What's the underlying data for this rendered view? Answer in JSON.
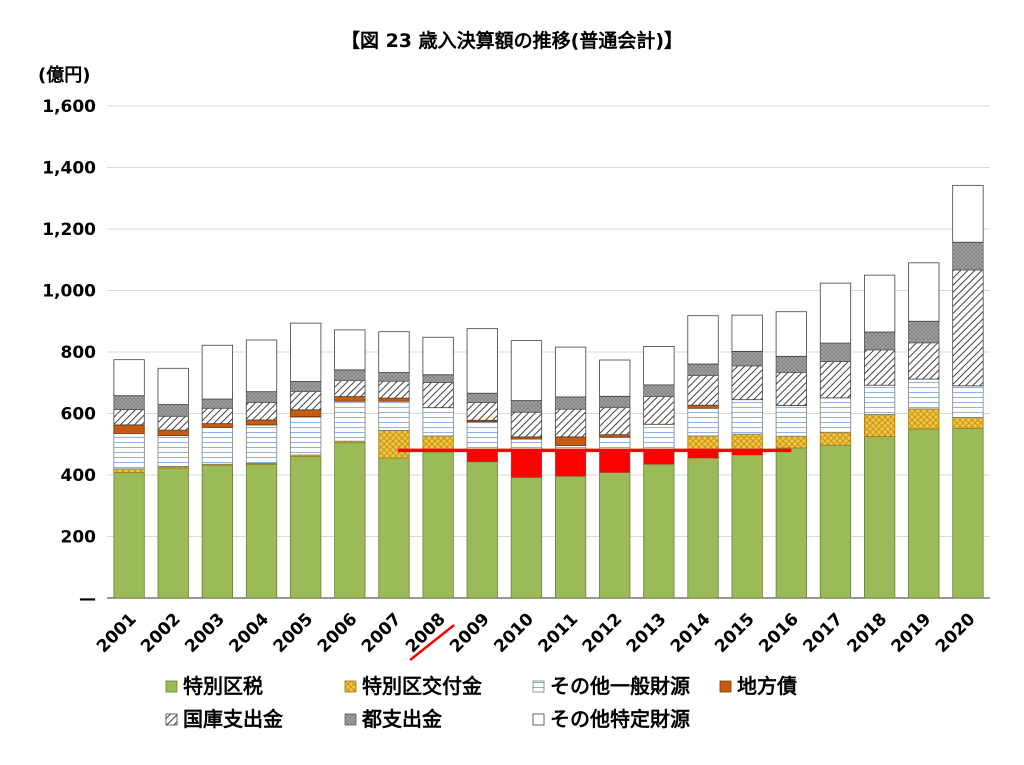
{
  "chart_data": {
    "type": "bar",
    "stacked": true,
    "title": "【図 23 歳入決算額の推移(普通会計)】",
    "unit_label": "(億円)",
    "ylim": [
      0,
      1600
    ],
    "y_ticks": [
      0,
      200,
      400,
      600,
      800,
      1000,
      1200,
      1400,
      1600
    ],
    "y_tick_labels": [
      "—",
      "200",
      "400",
      "600",
      "800",
      "1,000",
      "1,200",
      "1,400",
      "1,600"
    ],
    "grid": true,
    "legend_position": "bottom",
    "categories": [
      "2001",
      "2002",
      "2003",
      "2004",
      "2005",
      "2006",
      "2007",
      "2008",
      "2009",
      "2010",
      "2011",
      "2012",
      "2013",
      "2014",
      "2015",
      "2016",
      "2017",
      "2018",
      "2019",
      "2020"
    ],
    "series": [
      {
        "name": "特別区税",
        "color": "#9bbb59",
        "values": [
          408,
          423,
          432,
          435,
          460,
          505,
          455,
          475,
          443,
          392,
          396,
          408,
          435,
          455,
          465,
          488,
          497,
          525,
          550,
          552
        ]
      },
      {
        "name": "特別区交付金",
        "color": "#f2c544",
        "values": [
          12,
          5,
          3,
          3,
          5,
          5,
          90,
          52,
          0,
          0,
          0,
          0,
          0,
          72,
          68,
          38,
          42,
          72,
          65,
          35
        ]
      },
      {
        "name": "その他一般財源",
        "color": "#e9f0fb",
        "values": [
          115,
          100,
          120,
          125,
          125,
          130,
          95,
          92,
          130,
          125,
          100,
          115,
          130,
          90,
          112,
          100,
          112,
          95,
          97,
          103
        ]
      },
      {
        "name": "地方債",
        "color": "#c55a11",
        "values": [
          28,
          18,
          12,
          16,
          22,
          15,
          10,
          0,
          5,
          7,
          28,
          8,
          0,
          10,
          0,
          0,
          0,
          0,
          0,
          0
        ]
      },
      {
        "name": "国庫支出金",
        "color": "#ffffff",
        "values": [
          50,
          45,
          50,
          57,
          60,
          52,
          55,
          82,
          58,
          80,
          90,
          88,
          90,
          97,
          110,
          107,
          118,
          115,
          118,
          377
        ]
      },
      {
        "name": "都支出金",
        "color": "#a6a6a6",
        "values": [
          45,
          38,
          30,
          35,
          32,
          35,
          28,
          25,
          30,
          38,
          40,
          37,
          38,
          37,
          47,
          53,
          60,
          58,
          70,
          90
        ]
      },
      {
        "name": "その他特定財源",
        "color": "#ffffff",
        "values": [
          117,
          118,
          175,
          168,
          190,
          130,
          133,
          122,
          210,
          195,
          162,
          118,
          125,
          157,
          118,
          145,
          195,
          185,
          190,
          185
        ]
      }
    ],
    "reference": {
      "value": 480,
      "from": "2008",
      "to": "2016",
      "color": "#ff0000"
    },
    "deficits": [
      {
        "category": "2009",
        "value": 37
      },
      {
        "category": "2010",
        "value": 88
      },
      {
        "category": "2011",
        "value": 84
      },
      {
        "category": "2012",
        "value": 72
      },
      {
        "category": "2013",
        "value": 45
      },
      {
        "category": "2014",
        "value": 25
      },
      {
        "category": "2015",
        "value": 15
      }
    ],
    "struck_category": "2008"
  }
}
